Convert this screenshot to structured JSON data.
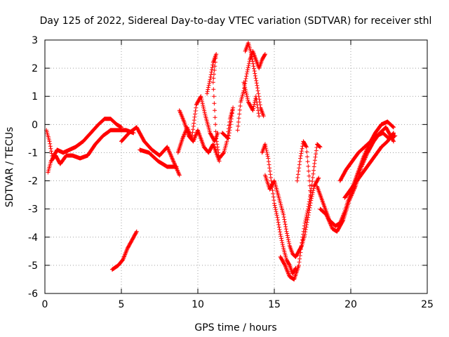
{
  "chart_data": {
    "type": "scatter",
    "title": "Day 125 of 2022, Sidereal Day-to-day VTEC variation (SDTVAR) for receiver sthl",
    "xlabel": "GPS time / hours",
    "ylabel": "SDTVAR / TECUs",
    "xlim": [
      0,
      25
    ],
    "ylim": [
      -6,
      3
    ],
    "xticks": [
      0,
      5,
      10,
      15,
      20,
      25
    ],
    "yticks": [
      -6,
      -5,
      -4,
      -3,
      -2,
      -1,
      0,
      1,
      2,
      3
    ],
    "grid": true,
    "marker": "+",
    "color": "#ff0000",
    "tracks": [
      [
        [
          0.1,
          -0.2
        ],
        [
          0.3,
          -0.6
        ],
        [
          0.5,
          -1.2
        ],
        [
          0.8,
          -0.9
        ],
        [
          1.2,
          -1.0
        ],
        [
          1.6,
          -0.9
        ],
        [
          2.0,
          -0.8
        ],
        [
          2.5,
          -0.6
        ],
        [
          3.0,
          -0.3
        ],
        [
          3.5,
          0.0
        ],
        [
          3.9,
          0.2
        ],
        [
          4.3,
          0.2
        ],
        [
          4.7,
          0.0
        ],
        [
          5.0,
          -0.1
        ]
      ],
      [
        [
          0.2,
          -1.7
        ],
        [
          0.4,
          -1.3
        ],
        [
          0.7,
          -1.1
        ],
        [
          1.0,
          -1.4
        ],
        [
          1.4,
          -1.1
        ],
        [
          1.8,
          -1.1
        ],
        [
          2.3,
          -1.2
        ],
        [
          2.8,
          -1.1
        ],
        [
          3.3,
          -0.7
        ],
        [
          3.8,
          -0.4
        ],
        [
          4.3,
          -0.2
        ],
        [
          4.8,
          -0.2
        ],
        [
          5.3,
          -0.2
        ],
        [
          5.8,
          -0.3
        ]
      ],
      [
        [
          4.4,
          -5.15
        ],
        [
          4.8,
          -5.0
        ],
        [
          5.1,
          -4.8
        ],
        [
          5.4,
          -4.4
        ],
        [
          5.7,
          -4.1
        ],
        [
          6.0,
          -3.8
        ]
      ],
      [
        [
          5.0,
          -0.6
        ],
        [
          5.5,
          -0.3
        ],
        [
          6.0,
          -0.1
        ],
        [
          6.5,
          -0.6
        ],
        [
          7.0,
          -0.9
        ],
        [
          7.5,
          -1.1
        ],
        [
          8.0,
          -0.8
        ],
        [
          8.4,
          -1.3
        ],
        [
          8.8,
          -1.8
        ]
      ],
      [
        [
          6.2,
          -0.9
        ],
        [
          6.8,
          -1.0
        ],
        [
          7.4,
          -1.3
        ],
        [
          8.0,
          -1.5
        ],
        [
          8.6,
          -1.5
        ]
      ],
      [
        [
          8.7,
          -1.0
        ],
        [
          9.0,
          -0.5
        ],
        [
          9.3,
          -0.1
        ],
        [
          9.6,
          -0.5
        ],
        [
          9.9,
          0.7
        ],
        [
          10.2,
          1.0
        ],
        [
          10.5,
          0.3
        ],
        [
          10.8,
          -0.3
        ],
        [
          11.1,
          -0.6
        ],
        [
          11.3,
          -0.3
        ]
      ],
      [
        [
          8.8,
          0.5
        ],
        [
          9.1,
          0.1
        ],
        [
          9.4,
          -0.4
        ],
        [
          9.7,
          -0.6
        ],
        [
          10.0,
          -0.2
        ],
        [
          10.4,
          -0.8
        ],
        [
          10.7,
          -1.0
        ],
        [
          11.0,
          -0.7
        ],
        [
          11.4,
          -1.3
        ]
      ],
      [
        [
          10.6,
          1.1
        ],
        [
          10.8,
          1.6
        ],
        [
          11.0,
          2.2
        ],
        [
          11.2,
          2.5
        ],
        [
          11.0,
          1.5
        ],
        [
          11.1,
          0.5
        ],
        [
          11.2,
          -0.5
        ],
        [
          11.4,
          -1.2
        ],
        [
          11.7,
          -1.0
        ],
        [
          11.9,
          -0.6
        ],
        [
          12.1,
          0.2
        ],
        [
          12.3,
          0.6
        ],
        [
          12.0,
          -0.5
        ],
        [
          11.6,
          -0.3
        ]
      ],
      [
        [
          12.6,
          -0.2
        ],
        [
          12.8,
          0.8
        ],
        [
          13.0,
          1.2
        ],
        [
          13.2,
          1.8
        ],
        [
          13.4,
          2.3
        ],
        [
          13.6,
          2.6
        ],
        [
          13.8,
          2.3
        ],
        [
          14.0,
          2.0
        ],
        [
          14.2,
          2.3
        ],
        [
          14.4,
          2.5
        ]
      ],
      [
        [
          13.1,
          2.6
        ],
        [
          13.3,
          2.9
        ],
        [
          13.5,
          2.5
        ],
        [
          13.7,
          1.9
        ],
        [
          13.9,
          1.3
        ],
        [
          14.1,
          0.6
        ],
        [
          14.3,
          0.3
        ]
      ],
      [
        [
          13.0,
          1.5
        ],
        [
          13.3,
          0.8
        ],
        [
          13.6,
          0.5
        ],
        [
          13.8,
          1.0
        ],
        [
          14.0,
          0.3
        ]
      ],
      [
        [
          14.2,
          -1.0
        ],
        [
          14.4,
          -0.7
        ],
        [
          14.6,
          -1.2
        ],
        [
          14.8,
          -2.0
        ],
        [
          15.0,
          -2.8
        ],
        [
          15.2,
          -3.3
        ],
        [
          15.4,
          -3.9
        ],
        [
          15.6,
          -4.4
        ],
        [
          15.8,
          -4.8
        ],
        [
          16.0,
          -5.0
        ],
        [
          16.2,
          -5.3
        ],
        [
          16.4,
          -5.1
        ]
      ],
      [
        [
          14.4,
          -1.8
        ],
        [
          14.7,
          -2.3
        ],
        [
          15.0,
          -2.0
        ],
        [
          15.3,
          -2.6
        ],
        [
          15.6,
          -3.2
        ],
        [
          15.8,
          -3.8
        ],
        [
          16.0,
          -4.3
        ],
        [
          16.2,
          -4.6
        ],
        [
          16.4,
          -4.7
        ],
        [
          16.6,
          -4.5
        ],
        [
          16.8,
          -4.3
        ],
        [
          17.0,
          -3.9
        ],
        [
          17.2,
          -3.3
        ],
        [
          17.4,
          -2.7
        ],
        [
          17.6,
          -2.2
        ],
        [
          17.9,
          -1.9
        ]
      ],
      [
        [
          15.4,
          -4.7
        ],
        [
          15.7,
          -5.0
        ],
        [
          16.0,
          -5.4
        ],
        [
          16.3,
          -5.5
        ],
        [
          16.6,
          -5.0
        ],
        [
          16.8,
          -4.2
        ],
        [
          17.0,
          -3.5
        ],
        [
          17.2,
          -3.0
        ],
        [
          17.4,
          -2.4
        ],
        [
          17.6,
          -1.5
        ],
        [
          17.8,
          -0.7
        ],
        [
          18.0,
          -0.8
        ]
      ],
      [
        [
          16.5,
          -2.0
        ],
        [
          16.7,
          -1.2
        ],
        [
          16.9,
          -0.6
        ],
        [
          17.1,
          -0.8
        ],
        [
          17.3,
          -2.0
        ],
        [
          17.4,
          -2.7
        ]
      ],
      [
        [
          17.8,
          -2.2
        ],
        [
          18.2,
          -2.8
        ],
        [
          18.6,
          -3.4
        ],
        [
          19.0,
          -3.6
        ],
        [
          19.3,
          -3.5
        ],
        [
          19.6,
          -3.1
        ],
        [
          20.0,
          -2.4
        ],
        [
          20.4,
          -1.8
        ],
        [
          20.8,
          -1.2
        ],
        [
          21.2,
          -0.7
        ],
        [
          21.6,
          -0.3
        ],
        [
          22.0,
          0.0
        ],
        [
          22.4,
          0.1
        ],
        [
          22.8,
          -0.1
        ]
      ],
      [
        [
          18.0,
          -3.0
        ],
        [
          18.4,
          -3.2
        ],
        [
          18.8,
          -3.7
        ],
        [
          19.1,
          -3.8
        ],
        [
          19.5,
          -3.4
        ],
        [
          19.9,
          -2.7
        ],
        [
          20.3,
          -2.2
        ],
        [
          20.7,
          -1.5
        ],
        [
          21.1,
          -1.0
        ],
        [
          21.5,
          -0.6
        ],
        [
          21.9,
          -0.3
        ],
        [
          22.3,
          -0.1
        ],
        [
          22.8,
          -0.6
        ]
      ],
      [
        [
          19.3,
          -2.0
        ],
        [
          19.7,
          -1.6
        ],
        [
          20.1,
          -1.3
        ],
        [
          20.5,
          -1.0
        ],
        [
          20.9,
          -0.8
        ],
        [
          21.3,
          -0.6
        ],
        [
          21.7,
          -0.4
        ],
        [
          22.1,
          -0.3
        ],
        [
          22.5,
          -0.5
        ],
        [
          22.9,
          -0.4
        ]
      ],
      [
        [
          19.6,
          -2.6
        ],
        [
          20.0,
          -2.3
        ],
        [
          20.4,
          -2.0
        ],
        [
          20.8,
          -1.7
        ],
        [
          21.2,
          -1.4
        ],
        [
          21.6,
          -1.1
        ],
        [
          22.0,
          -0.8
        ],
        [
          22.4,
          -0.6
        ],
        [
          22.8,
          -0.3
        ]
      ]
    ]
  }
}
